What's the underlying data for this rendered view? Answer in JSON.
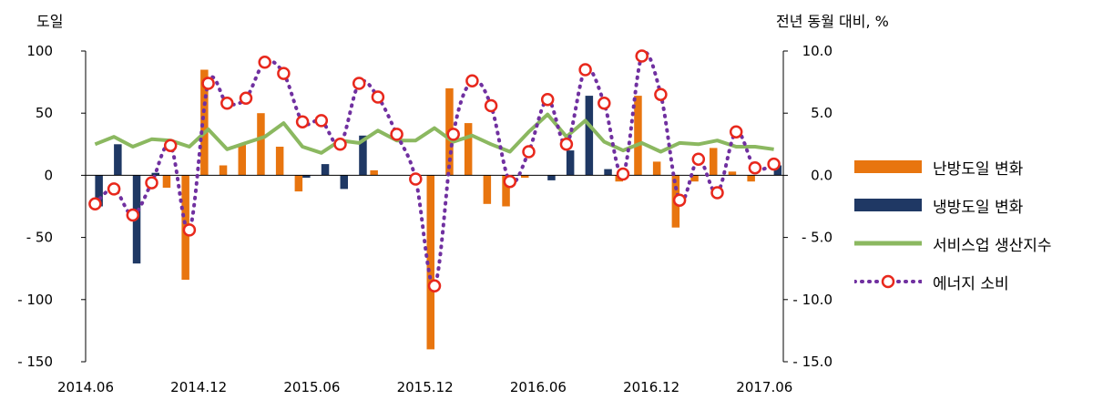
{
  "chart_data": {
    "type": "bar",
    "left_axis_title": "도일",
    "right_axis_title": "전년 동월 대비, %",
    "x_tick_labels": [
      "2014.06",
      "2014.12",
      "2015.06",
      "2015.12",
      "2016.06",
      "2016.12",
      "2017.06"
    ],
    "left_ylim": [
      -150,
      100
    ],
    "left_ticks": [
      100,
      50,
      0,
      -50,
      -100,
      -150
    ],
    "left_tick_labels": [
      "100",
      "50",
      "0",
      "- 50",
      "- 100",
      "- 150"
    ],
    "right_ylim": [
      -15.0,
      10.0
    ],
    "right_ticks": [
      10,
      5,
      0,
      -5,
      -10,
      -15
    ],
    "right_tick_labels": [
      "10.0",
      "5.0",
      "0.0",
      "- 5.0",
      "- 10.0",
      "- 15.0"
    ],
    "periods": 37,
    "series": [
      {
        "name": "난방도일 변화",
        "kind": "bar",
        "axis": "left",
        "color": "#e8750f",
        "values": [
          0,
          0,
          0,
          0,
          -10,
          -84,
          85,
          8,
          25,
          50,
          23,
          -13,
          0,
          0,
          0,
          4,
          0,
          0,
          -140,
          70,
          42,
          -23,
          -25,
          -2,
          0,
          0,
          0,
          0,
          -5,
          64,
          11,
          -42,
          -5,
          22,
          3,
          -5,
          0
        ]
      },
      {
        "name": "냉방도일 변화",
        "kind": "bar",
        "axis": "left",
        "color": "#1f3864",
        "values": [
          -25,
          25,
          -71,
          2,
          0,
          0,
          0,
          0,
          0,
          0,
          0,
          -2,
          9,
          -11,
          32,
          0,
          0,
          0,
          0,
          0,
          0,
          0,
          0,
          0,
          -4,
          20,
          64,
          5,
          0,
          0,
          0,
          0,
          0,
          0,
          0,
          0,
          8
        ]
      },
      {
        "name": "서비스업 생산지수",
        "kind": "line",
        "axis": "right",
        "color": "#8bb860",
        "values": [
          2.5,
          3.1,
          2.3,
          2.9,
          2.8,
          2.3,
          3.7,
          2.1,
          2.6,
          3.1,
          4.2,
          2.3,
          1.8,
          2.8,
          2.6,
          3.6,
          2.8,
          2.8,
          3.8,
          2.7,
          3.2,
          2.5,
          1.9,
          3.5,
          4.9,
          3.1,
          4.4,
          2.7,
          2.0,
          2.6,
          1.9,
          2.6,
          2.5,
          2.8,
          2.3,
          2.3,
          2.1
        ]
      },
      {
        "name": "에너지 소비",
        "kind": "dotted-marker",
        "axis": "right",
        "color": "#7030a0",
        "marker_color": "#e8281c",
        "values": [
          -2.3,
          -1.1,
          -3.2,
          -0.6,
          2.4,
          -4.4,
          7.4,
          5.8,
          6.2,
          9.1,
          8.2,
          4.3,
          4.4,
          2.5,
          7.4,
          6.3,
          3.3,
          -0.3,
          -8.9,
          3.3,
          7.6,
          5.6,
          -0.5,
          1.9,
          6.1,
          2.5,
          8.5,
          5.8,
          0.1,
          9.6,
          6.5,
          -2.0,
          1.3,
          -1.4,
          3.5,
          0.6,
          0.9
        ]
      }
    ],
    "legend_position": "right",
    "grid": false
  }
}
